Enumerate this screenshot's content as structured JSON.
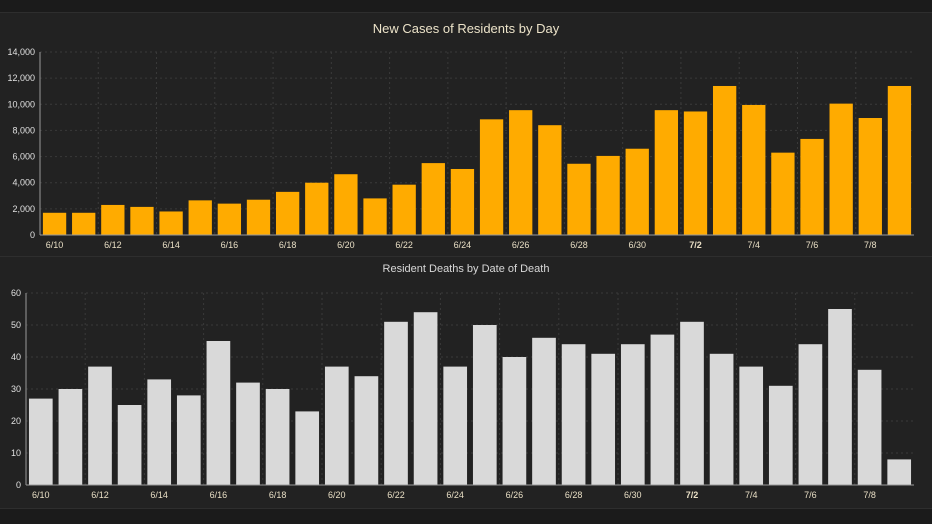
{
  "colors": {
    "cases_bar": "#ffab00",
    "deaths_bar": "#d9d9d9",
    "grid": "#3a3a3a",
    "axis": "#9a9a9a"
  },
  "chart_data": [
    {
      "type": "bar",
      "title": "New Cases of Residents by Day",
      "xlabel": "",
      "ylabel": "",
      "ylim": [
        0,
        14000
      ],
      "yticks": [
        "0",
        "2,000",
        "4,000",
        "6,000",
        "8,000",
        "10,000",
        "12,000",
        "14,000"
      ],
      "grid": true,
      "categories": [
        "6/10",
        "6/11",
        "6/12",
        "6/13",
        "6/14",
        "6/15",
        "6/16",
        "6/17",
        "6/18",
        "6/19",
        "6/20",
        "6/21",
        "6/22",
        "6/23",
        "6/24",
        "6/25",
        "6/26",
        "6/27",
        "6/28",
        "6/29",
        "6/30",
        "7/1",
        "7/2",
        "7/3",
        "7/4",
        "7/5",
        "7/6",
        "7/7",
        "7/8",
        "7/9"
      ],
      "xticks": [
        "6/10",
        "6/12",
        "6/14",
        "6/16",
        "6/18",
        "6/20",
        "6/22",
        "6/24",
        "6/26",
        "6/28",
        "6/30",
        "7/2",
        "7/4",
        "7/6",
        "7/8"
      ],
      "values": [
        1700,
        1700,
        2300,
        2150,
        1800,
        2650,
        2400,
        2700,
        3300,
        4000,
        4650,
        2800,
        3850,
        5500,
        5050,
        8850,
        9550,
        8400,
        5450,
        6050,
        6600,
        9550,
        9450,
        11400,
        9950,
        6300,
        7350,
        10050,
        8950,
        11400
      ]
    },
    {
      "type": "bar",
      "title": "Resident Deaths by Date of Death",
      "xlabel": "",
      "ylabel": "",
      "ylim": [
        0,
        60
      ],
      "yticks": [
        "0",
        "10",
        "20",
        "30",
        "40",
        "50",
        "60"
      ],
      "grid": true,
      "categories": [
        "6/10",
        "6/11",
        "6/12",
        "6/13",
        "6/14",
        "6/15",
        "6/16",
        "6/17",
        "6/18",
        "6/19",
        "6/20",
        "6/21",
        "6/22",
        "6/23",
        "6/24",
        "6/25",
        "6/26",
        "6/27",
        "6/28",
        "6/29",
        "6/30",
        "7/1",
        "7/2",
        "7/3",
        "7/4",
        "7/5",
        "7/6",
        "7/7",
        "7/8",
        "7/9"
      ],
      "xticks": [
        "6/10",
        "6/12",
        "6/14",
        "6/16",
        "6/18",
        "6/20",
        "6/22",
        "6/24",
        "6/26",
        "6/28",
        "6/30",
        "7/2",
        "7/4",
        "7/6",
        "7/8"
      ],
      "values": [
        27,
        30,
        37,
        25,
        33,
        28,
        45,
        32,
        30,
        23,
        37,
        34,
        51,
        54,
        37,
        50,
        40,
        46,
        44,
        41,
        44,
        47,
        51,
        41,
        37,
        31,
        44,
        55,
        36,
        8
      ]
    }
  ]
}
